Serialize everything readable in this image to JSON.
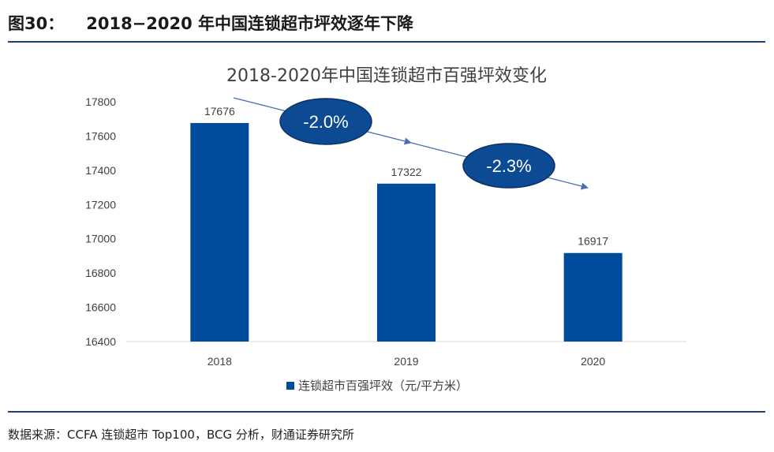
{
  "figure": {
    "label": "图30：",
    "title": "2018−2020 年中国连锁超市坪效逐年下降",
    "source": "数据来源：CCFA 连锁超市 Top100，BCG 分析，财通证券研究所"
  },
  "colors": {
    "bar": "#004b9b",
    "header_rule": "#1f3f73",
    "ellipse_fill": "#0d4a94",
    "ellipse_stroke": "#0a2f66",
    "trend_line": "#4a6fb0"
  },
  "chart_data": {
    "type": "bar",
    "title": "2018-2020年中国连锁超市百强坪效变化",
    "categories": [
      "2018",
      "2019",
      "2020"
    ],
    "series": [
      {
        "name": "连锁超市百强坪效（元/平方米）",
        "values": [
          17676,
          17322,
          16917
        ]
      }
    ],
    "data_labels": [
      "17676",
      "17322",
      "16917"
    ],
    "ylim": [
      16400,
      17800
    ],
    "yticks": [
      16400,
      16600,
      16800,
      17000,
      17200,
      17400,
      17600,
      17800
    ],
    "xlabel": "",
    "ylabel": "",
    "grid": false,
    "legend": "bottom-center",
    "annotations": [
      {
        "text": "-2.0%",
        "from": "2018",
        "to": "2019"
      },
      {
        "text": "-2.3%",
        "from": "2019",
        "to": "2020"
      }
    ]
  }
}
